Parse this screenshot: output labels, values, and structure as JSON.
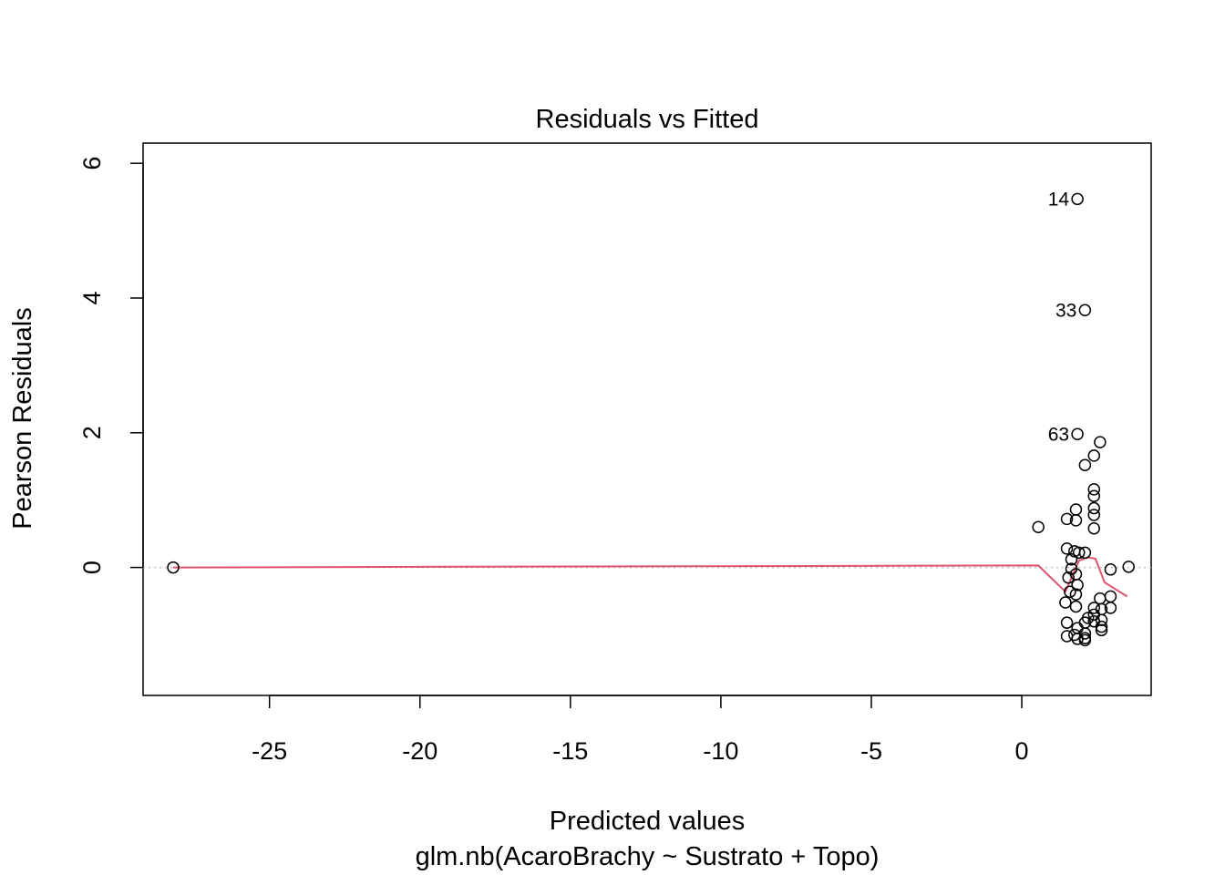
{
  "chart_data": {
    "type": "scatter",
    "title": "Residuals vs Fitted",
    "xlabel": "Predicted values",
    "subtitle": "glm.nb(AcaroBrachy ~ Sustrato + Topo)",
    "ylabel": "Pearson Residuals",
    "xlim": [
      -29.2,
      4.3
    ],
    "ylim": [
      -1.9,
      6.3
    ],
    "x_ticks": [
      -25,
      -20,
      -15,
      -10,
      -5,
      0
    ],
    "x_tick_labels": [
      "-25",
      "-20",
      "-15",
      "-10",
      "-5",
      "0"
    ],
    "y_ticks": [
      0,
      2,
      4,
      6
    ],
    "y_tick_labels": [
      "0",
      "2",
      "4",
      "6"
    ],
    "reference_line": {
      "y": 0,
      "style": "dotted",
      "color": "#bebebe"
    },
    "smooth_color": "#df536b",
    "point_color": "#000000",
    "labeled_points": [
      {
        "label": "14",
        "x": 1.85,
        "y": 5.47
      },
      {
        "label": "33",
        "x": 2.1,
        "y": 3.82
      },
      {
        "label": "63",
        "x": 1.85,
        "y": 1.98
      }
    ],
    "points": [
      {
        "x": -28.2,
        "y": 0.0
      },
      {
        "x": 0.55,
        "y": 0.6
      },
      {
        "x": 1.5,
        "y": 0.72
      },
      {
        "x": 1.8,
        "y": 0.86
      },
      {
        "x": 1.8,
        "y": 0.7
      },
      {
        "x": 2.6,
        "y": 1.86
      },
      {
        "x": 2.4,
        "y": 1.66
      },
      {
        "x": 2.1,
        "y": 1.52
      },
      {
        "x": 2.4,
        "y": 1.16
      },
      {
        "x": 2.4,
        "y": 1.06
      },
      {
        "x": 2.4,
        "y": 0.88
      },
      {
        "x": 2.4,
        "y": 0.78
      },
      {
        "x": 2.4,
        "y": 0.58
      },
      {
        "x": 1.5,
        "y": 0.28
      },
      {
        "x": 1.75,
        "y": 0.24
      },
      {
        "x": 1.9,
        "y": 0.22
      },
      {
        "x": 2.1,
        "y": 0.22
      },
      {
        "x": 1.65,
        "y": 0.12
      },
      {
        "x": 1.65,
        "y": -0.02
      },
      {
        "x": 1.8,
        "y": -0.1
      },
      {
        "x": 1.55,
        "y": -0.15
      },
      {
        "x": 1.85,
        "y": -0.26
      },
      {
        "x": 1.6,
        "y": -0.36
      },
      {
        "x": 1.8,
        "y": -0.4
      },
      {
        "x": 1.45,
        "y": -0.52
      },
      {
        "x": 1.8,
        "y": -0.58
      },
      {
        "x": 3.55,
        "y": 0.01
      },
      {
        "x": 2.95,
        "y": -0.03
      },
      {
        "x": 2.6,
        "y": -0.46
      },
      {
        "x": 2.95,
        "y": -0.43
      },
      {
        "x": 2.4,
        "y": -0.6
      },
      {
        "x": 2.65,
        "y": -0.62
      },
      {
        "x": 2.95,
        "y": -0.6
      },
      {
        "x": 2.4,
        "y": -0.7
      },
      {
        "x": 2.2,
        "y": -0.75
      },
      {
        "x": 2.4,
        "y": -0.8
      },
      {
        "x": 2.65,
        "y": -0.78
      },
      {
        "x": 2.1,
        "y": -0.82
      },
      {
        "x": 1.5,
        "y": -0.82
      },
      {
        "x": 2.65,
        "y": -0.88
      },
      {
        "x": 1.85,
        "y": -0.9
      },
      {
        "x": 2.65,
        "y": -0.93
      },
      {
        "x": 2.1,
        "y": -0.98
      },
      {
        "x": 1.75,
        "y": -1.0
      },
      {
        "x": 1.5,
        "y": -1.02
      },
      {
        "x": 2.1,
        "y": -1.05
      },
      {
        "x": 1.85,
        "y": -1.06
      },
      {
        "x": 2.1,
        "y": -1.08
      },
      {
        "x": 1.85,
        "y": 5.47
      },
      {
        "x": 2.1,
        "y": 3.82
      },
      {
        "x": 1.85,
        "y": 1.98
      }
    ],
    "smooth_line": [
      {
        "x": -28.2,
        "y": 0.0
      },
      {
        "x": -18.5,
        "y": 0.01
      },
      {
        "x": -9.1,
        "y": 0.02
      },
      {
        "x": 0.55,
        "y": 0.03
      },
      {
        "x": 1.45,
        "y": -0.36
      },
      {
        "x": 1.7,
        "y": -0.1
      },
      {
        "x": 1.9,
        "y": 0.1
      },
      {
        "x": 2.2,
        "y": 0.15
      },
      {
        "x": 2.45,
        "y": 0.13
      },
      {
        "x": 2.75,
        "y": -0.22
      },
      {
        "x": 3.1,
        "y": -0.32
      },
      {
        "x": 3.5,
        "y": -0.43
      }
    ]
  }
}
